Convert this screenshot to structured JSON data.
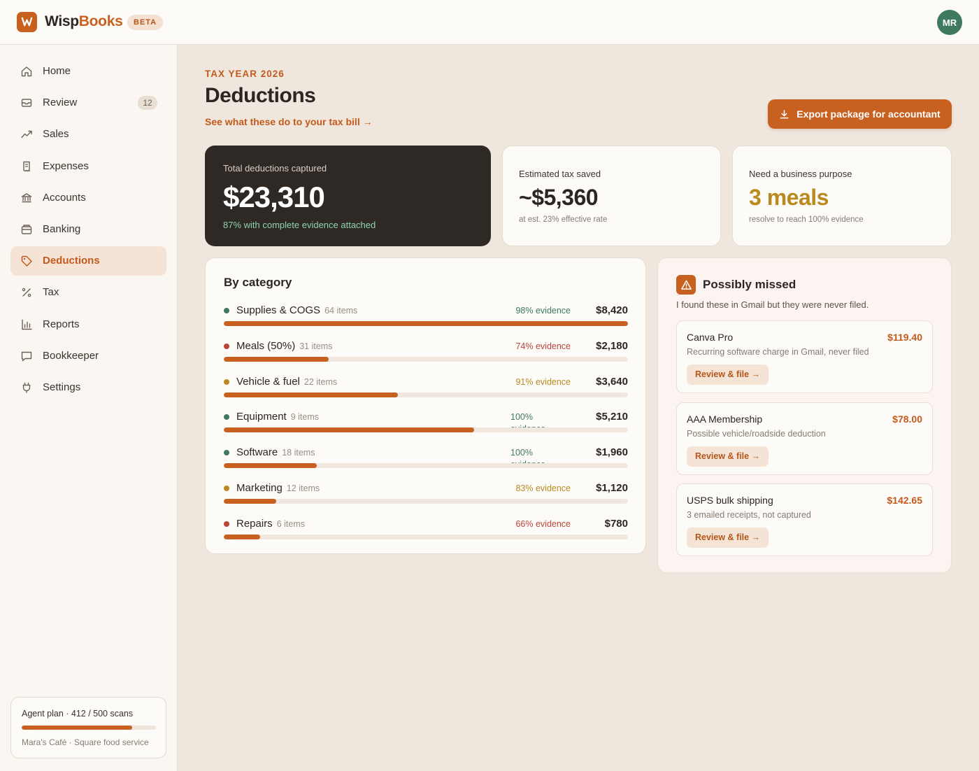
{
  "app": {
    "name_primary": "Wisp",
    "name_accent": "Books",
    "beta_label": "BETA",
    "user_initials": "MR",
    "brand_color": "#c8601f"
  },
  "sidebar": {
    "items": [
      {
        "label": "Home",
        "icon": "home-icon"
      },
      {
        "label": "Review",
        "icon": "inbox-icon",
        "badge": "12"
      },
      {
        "label": "Sales",
        "icon": "trend-icon"
      },
      {
        "label": "Expenses",
        "icon": "receipt-icon"
      },
      {
        "label": "Accounts",
        "icon": "bank-icon"
      },
      {
        "label": "Banking",
        "icon": "safe-icon"
      },
      {
        "label": "Deductions",
        "icon": "tag-icon",
        "active": true
      },
      {
        "label": "Tax",
        "icon": "percent-icon"
      },
      {
        "label": "Reports",
        "icon": "bar-chart-icon"
      },
      {
        "label": "Bookkeeper",
        "icon": "chat-icon"
      },
      {
        "label": "Settings",
        "icon": "plug-icon"
      }
    ],
    "plan": {
      "title": "Agent plan · 412 / 500 scans",
      "used": 412,
      "total": 500,
      "business": "Mara's Café · Square food service"
    }
  },
  "header": {
    "eyebrow": "TAX YEAR 2026",
    "title": "Deductions",
    "link": "See what these do to your tax bill →",
    "export_label": "Export package for accountant"
  },
  "kpis": {
    "total": {
      "label": "Total deductions captured",
      "value": "$23,310",
      "sub": "87% with complete evidence attached"
    },
    "saved": {
      "label": "Estimated tax saved",
      "value": "~$5,360",
      "sub": "at est. 23% effective rate"
    },
    "purpose": {
      "label": "Need a business purpose",
      "value": "3 meals",
      "sub": "resolve to reach 100% evidence"
    }
  },
  "categories": {
    "title": "By category",
    "rows": [
      {
        "name": "Supplies & COGS",
        "items": "64 items",
        "evidence": "98% evidence",
        "amount": "$8,420",
        "fill": 1.0,
        "dot": "#3f7a5e",
        "ev_color": "#3f7a5e"
      },
      {
        "name": "Meals (50%)",
        "items": "31 items",
        "evidence": "74% evidence",
        "amount": "$2,180",
        "fill": 0.26,
        "dot": "#b8443a",
        "ev_color": "#b8443a"
      },
      {
        "name": "Vehicle & fuel",
        "items": "22 items",
        "evidence": "91% evidence",
        "amount": "$3,640",
        "fill": 0.43,
        "dot": "#b98a1e",
        "ev_color": "#b98a1e"
      },
      {
        "name": "Equipment",
        "items": "9 items",
        "evidence": "100% evidence",
        "amount": "$5,210",
        "fill": 0.62,
        "dot": "#3f7a5e",
        "ev_color": "#3f7a5e",
        "wrap": true
      },
      {
        "name": "Software",
        "items": "18 items",
        "evidence": "100% evidence",
        "amount": "$1,960",
        "fill": 0.23,
        "dot": "#3f7a5e",
        "ev_color": "#3f7a5e",
        "wrap": true
      },
      {
        "name": "Marketing",
        "items": "12 items",
        "evidence": "83% evidence",
        "amount": "$1,120",
        "fill": 0.13,
        "dot": "#b98a1e",
        "ev_color": "#b98a1e"
      },
      {
        "name": "Repairs",
        "items": "6 items",
        "evidence": "66% evidence",
        "amount": "$780",
        "fill": 0.09,
        "dot": "#b8443a",
        "ev_color": "#b8443a"
      }
    ]
  },
  "missed": {
    "title": "Possibly missed",
    "subtitle": "I found these in Gmail but they were never filed.",
    "items": [
      {
        "name": "Canva Pro",
        "amount": "$119.40",
        "desc": "Recurring software charge in Gmail, never filed",
        "button": "Review & file →"
      },
      {
        "name": "AAA Membership",
        "amount": "$78.00",
        "desc": "Possible vehicle/roadside deduction",
        "button": "Review & file →"
      },
      {
        "name": "USPS bulk shipping",
        "amount": "$142.65",
        "desc": "3 emailed receipts, not captured",
        "button": "Review & file →"
      }
    ]
  }
}
